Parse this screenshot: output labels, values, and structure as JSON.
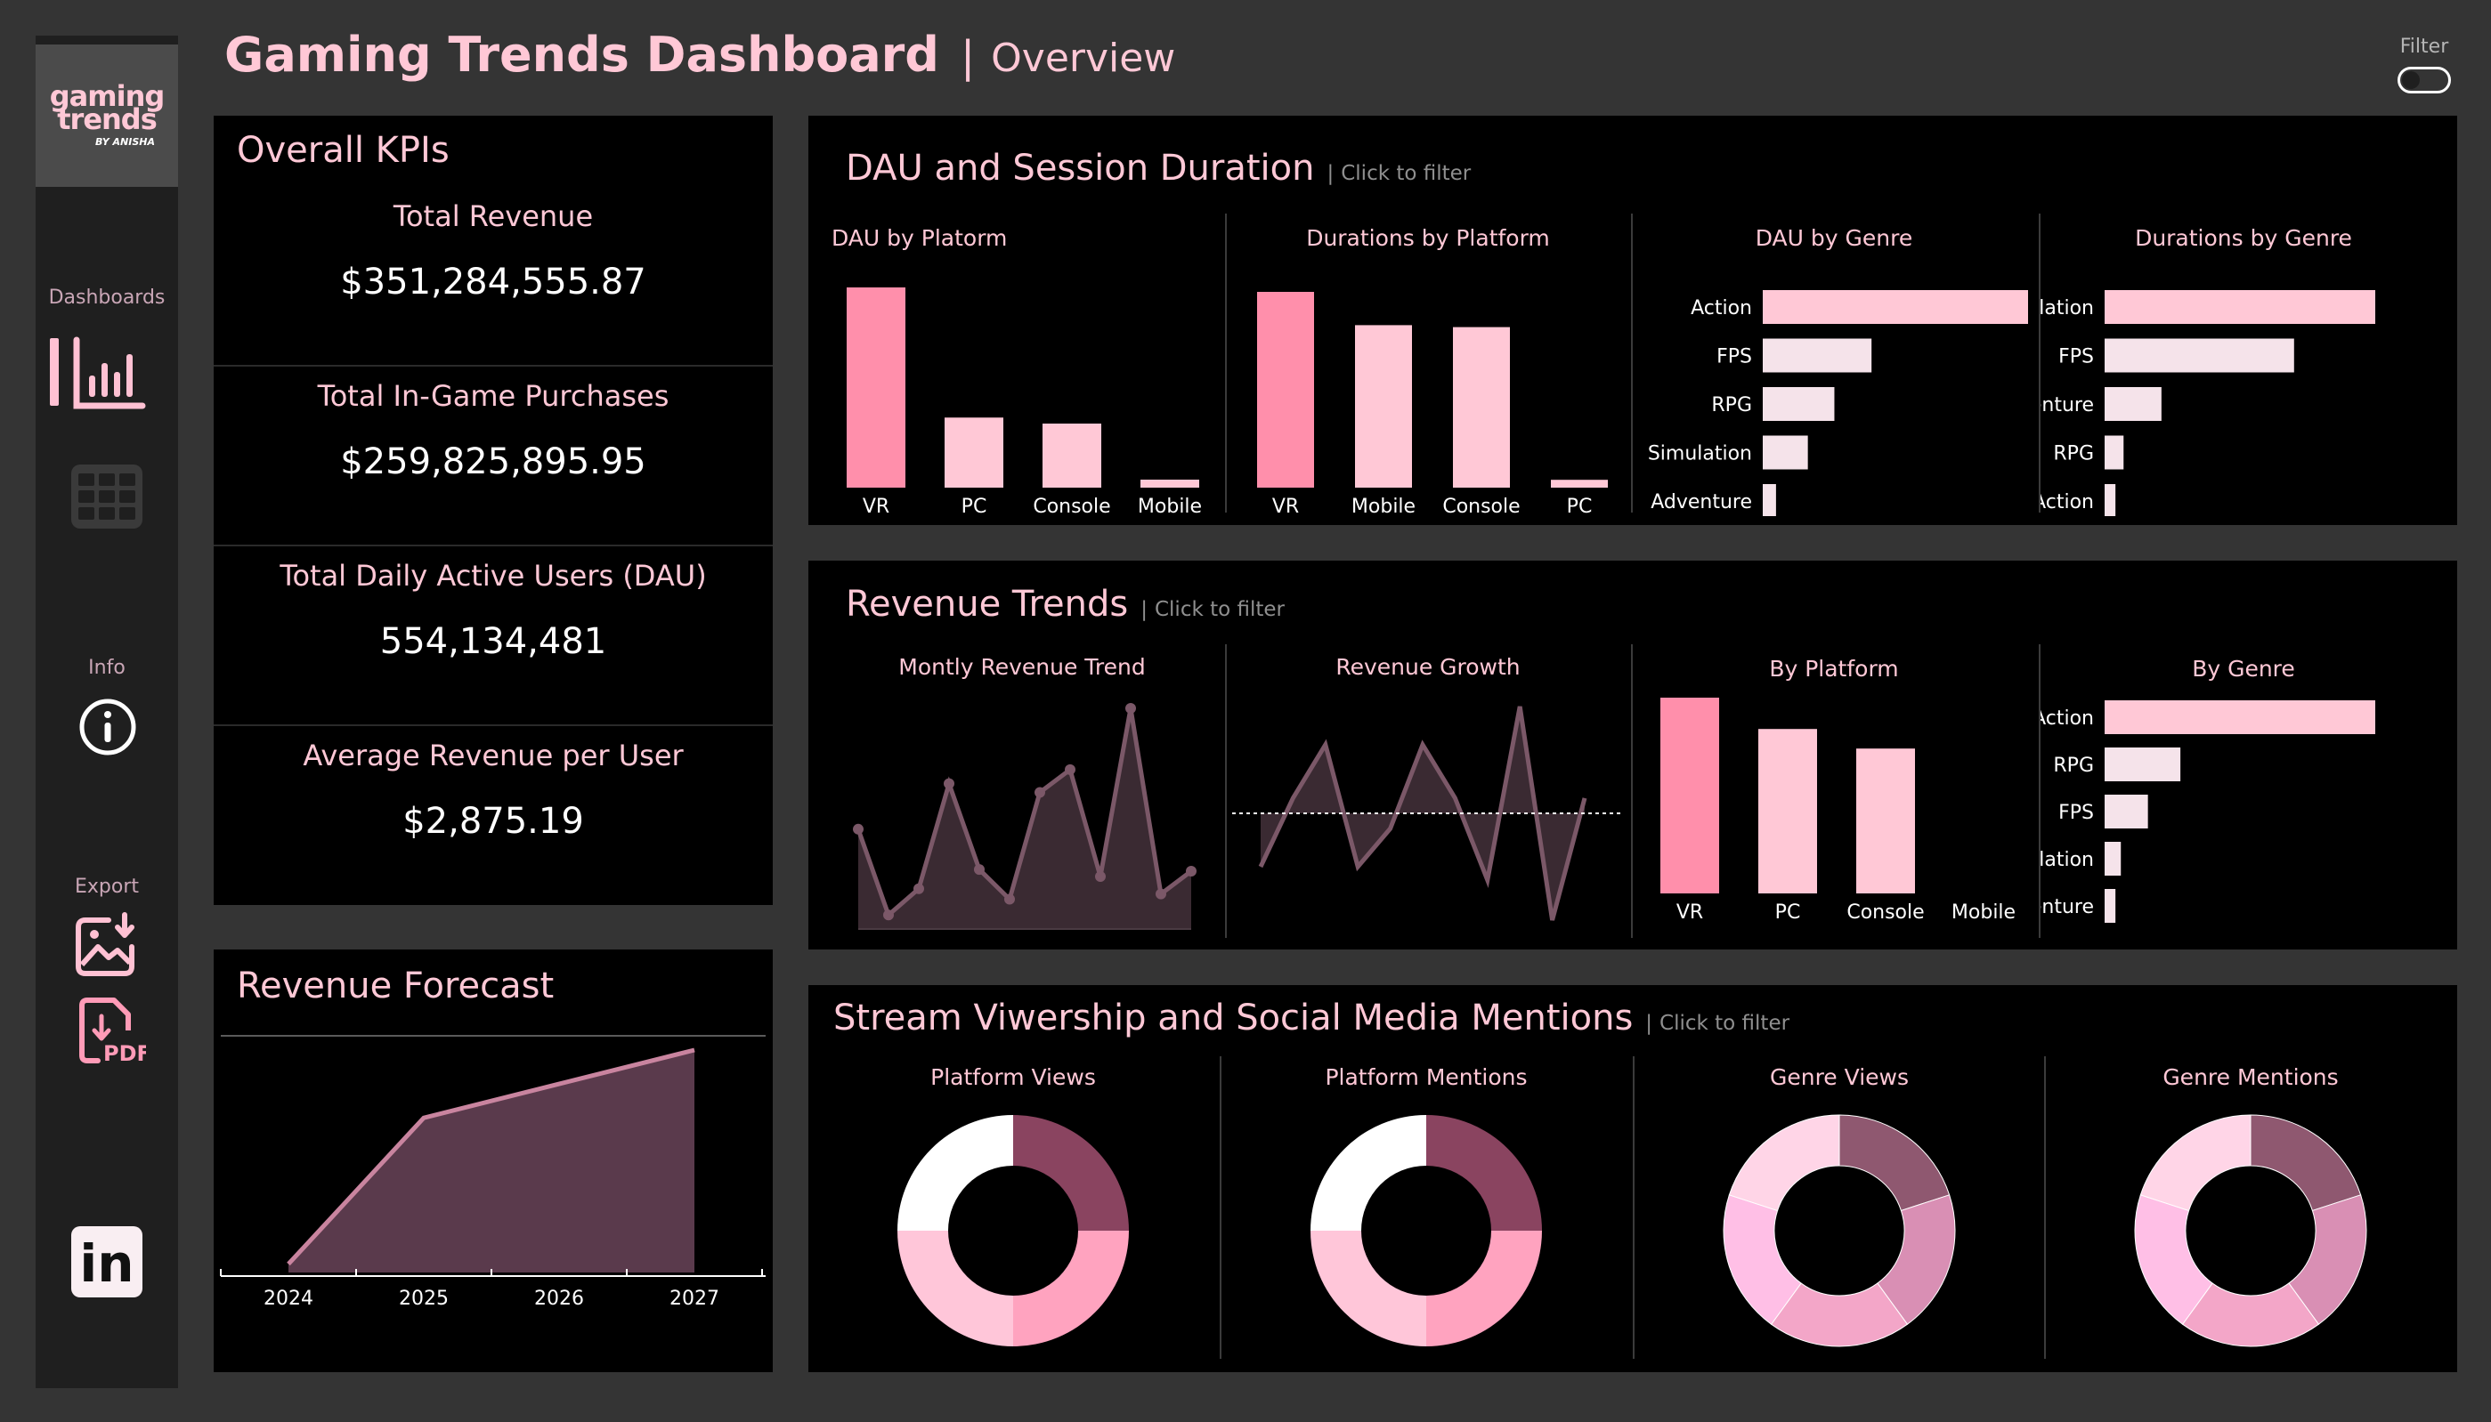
{
  "header": {
    "title": "Gaming Trends Dashboard",
    "separator": "|",
    "subtitle": "Overview"
  },
  "filter": {
    "label": "Filter",
    "on": false
  },
  "sidebar": {
    "logo_line1": "gaming",
    "logo_line2": "trends",
    "logo_by": "BY ANISHA",
    "dashboards_label": "Dashboards",
    "info_label": "Info",
    "export_label": "Export",
    "pdf_label": "PDF",
    "linkedin_label": "in"
  },
  "kpis": {
    "heading": "Overall KPIs",
    "items": [
      {
        "label": "Total Revenue",
        "value": "$351,284,555.87"
      },
      {
        "label": "Total In-Game Purchases",
        "value": "$259,825,895.95"
      },
      {
        "label": "Total Daily Active Users (DAU)",
        "value": "554,134,481"
      },
      {
        "label": "Average Revenue per User",
        "value": "$2,875.19"
      }
    ]
  },
  "forecast": {
    "title": "Revenue Forecast"
  },
  "sections": {
    "dau": {
      "title": "DAU and Session Duration",
      "sep": "|",
      "hint": "Click to filter"
    },
    "revenue": {
      "title": "Revenue Trends",
      "sep": "|",
      "hint": "Click to filter"
    },
    "stream": {
      "title": "Stream Viwership and Social Media Mentions",
      "sep": "|",
      "hint": "Click to filter"
    }
  },
  "colors": {
    "bg": "#343434",
    "panel": "#000000",
    "pink_strong": "#ff8fab",
    "pink_light": "#ffc8d6",
    "pink_pale": "#f5e3ea",
    "line": "#7b5868",
    "area": "#5a3a4c"
  },
  "chart_data": [
    {
      "id": "dau_by_platform",
      "type": "bar",
      "title": "DAU by Platorm",
      "categories": [
        "VR",
        "PC",
        "Console",
        "Mobile"
      ],
      "values": [
        100,
        35,
        32,
        4
      ]
    },
    {
      "id": "duration_by_platform",
      "type": "bar",
      "title": "Durations by Platform",
      "categories": [
        "VR",
        "Mobile",
        "Console",
        "PC"
      ],
      "values": [
        100,
        83,
        82,
        4
      ]
    },
    {
      "id": "dau_by_genre",
      "type": "bar",
      "orientation": "horizontal",
      "title": "DAU by Genre",
      "categories": [
        "Action",
        "FPS",
        "RPG",
        "Simulation",
        "Adventure"
      ],
      "values": [
        100,
        41,
        27,
        17,
        5
      ]
    },
    {
      "id": "duration_by_genre",
      "type": "bar",
      "orientation": "horizontal",
      "title": "Durations by Genre",
      "categories": [
        "Simulation",
        "FPS",
        "Adventure",
        "RPG",
        "Action"
      ],
      "values": [
        100,
        70,
        21,
        7,
        4
      ]
    },
    {
      "id": "monthly_revenue",
      "type": "area",
      "title": "Montly Revenue Trend",
      "values": [
        57,
        8,
        23,
        83,
        34,
        17,
        78,
        91,
        30,
        126,
        20,
        33
      ]
    },
    {
      "id": "revenue_growth",
      "type": "line",
      "title": "Revenue Growth",
      "values": [
        -28,
        8,
        36,
        -28,
        -8,
        36,
        8,
        -35,
        56,
        -56,
        8
      ],
      "reference": 0
    },
    {
      "id": "revenue_by_platform",
      "type": "bar",
      "title": "By Platform",
      "categories": [
        "VR",
        "PC",
        "Console",
        "Mobile"
      ],
      "values": [
        100,
        84,
        74,
        0
      ]
    },
    {
      "id": "revenue_by_genre",
      "type": "bar",
      "orientation": "horizontal",
      "title": "By Genre",
      "categories": [
        "Action",
        "RPG",
        "FPS",
        "Simulation",
        "Adventure"
      ],
      "values": [
        100,
        28,
        16,
        6,
        4
      ]
    },
    {
      "id": "revenue_forecast",
      "type": "area",
      "categories": [
        "2024",
        "2025",
        "2026",
        "2027"
      ],
      "values": [
        4,
        73,
        89,
        105
      ]
    },
    {
      "id": "platform_views",
      "type": "pie",
      "donut": true,
      "title": "Platform Views",
      "values": [
        25,
        25,
        25,
        25
      ]
    },
    {
      "id": "platform_mentions",
      "type": "pie",
      "donut": true,
      "title": "Platform Mentions",
      "values": [
        25,
        25,
        25,
        25
      ]
    },
    {
      "id": "genre_views",
      "type": "pie",
      "donut": true,
      "title": "Genre Views",
      "values": [
        20,
        20,
        20,
        20,
        20
      ]
    },
    {
      "id": "genre_mentions",
      "type": "pie",
      "donut": true,
      "title": "Genre Mentions",
      "values": [
        20,
        20,
        20,
        20,
        20
      ]
    }
  ]
}
